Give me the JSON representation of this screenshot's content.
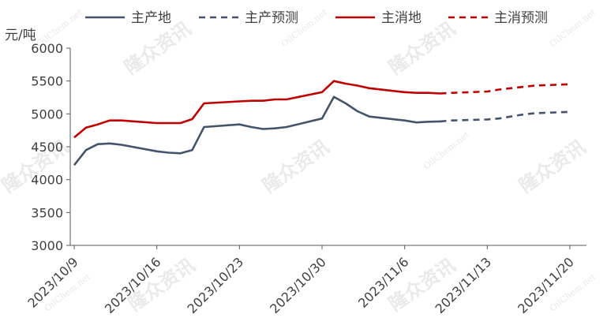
{
  "chart_data": {
    "type": "line",
    "title": "",
    "ylabel": "元/吨",
    "xlabel": "",
    "ylim": [
      3000,
      6000
    ],
    "yticks": [
      3000,
      3500,
      4000,
      4500,
      5000,
      5500,
      6000
    ],
    "xlim": [
      "2023-10-09",
      "2023-11-20"
    ],
    "xticks": [
      "2023/10/9",
      "2023/10/16",
      "2023/10/23",
      "2023/10/30",
      "2023/11/6",
      "2023/11/13",
      "2023/11/20"
    ],
    "legend_position": "top",
    "grid": false,
    "series": [
      {
        "name": "主产地",
        "color": "#44546a",
        "dash": "solid",
        "points": [
          [
            "2023-10-09",
            4220
          ],
          [
            "2023-10-10",
            4450
          ],
          [
            "2023-10-11",
            4540
          ],
          [
            "2023-10-12",
            4550
          ],
          [
            "2023-10-13",
            4530
          ],
          [
            "2023-10-16",
            4430
          ],
          [
            "2023-10-17",
            4410
          ],
          [
            "2023-10-18",
            4400
          ],
          [
            "2023-10-19",
            4450
          ],
          [
            "2023-10-20",
            4800
          ],
          [
            "2023-10-23",
            4840
          ],
          [
            "2023-10-24",
            4800
          ],
          [
            "2023-10-25",
            4770
          ],
          [
            "2023-10-26",
            4780
          ],
          [
            "2023-10-27",
            4800
          ],
          [
            "2023-10-30",
            4930
          ],
          [
            "2023-10-31",
            5260
          ],
          [
            "2023-11-01",
            5160
          ],
          [
            "2023-11-02",
            5040
          ],
          [
            "2023-11-03",
            4960
          ],
          [
            "2023-11-06",
            4900
          ],
          [
            "2023-11-07",
            4870
          ],
          [
            "2023-11-08",
            4880
          ],
          [
            "2023-11-09",
            4885
          ]
        ]
      },
      {
        "name": "主产预测",
        "color": "#44546a",
        "dash": "dashed",
        "points": [
          [
            "2023-11-09",
            4885
          ],
          [
            "2023-11-10",
            4900
          ],
          [
            "2023-11-13",
            4915
          ],
          [
            "2023-11-14",
            4930
          ],
          [
            "2023-11-15",
            4960
          ],
          [
            "2023-11-16",
            4990
          ],
          [
            "2023-11-17",
            5010
          ],
          [
            "2023-11-20",
            5030
          ]
        ]
      },
      {
        "name": "主消地",
        "color": "#c00000",
        "dash": "solid",
        "points": [
          [
            "2023-10-09",
            4640
          ],
          [
            "2023-10-10",
            4790
          ],
          [
            "2023-10-11",
            4840
          ],
          [
            "2023-10-12",
            4900
          ],
          [
            "2023-10-13",
            4900
          ],
          [
            "2023-10-16",
            4860
          ],
          [
            "2023-10-17",
            4860
          ],
          [
            "2023-10-18",
            4860
          ],
          [
            "2023-10-19",
            4920
          ],
          [
            "2023-10-20",
            5160
          ],
          [
            "2023-10-23",
            5190
          ],
          [
            "2023-10-24",
            5200
          ],
          [
            "2023-10-25",
            5200
          ],
          [
            "2023-10-26",
            5220
          ],
          [
            "2023-10-27",
            5220
          ],
          [
            "2023-10-30",
            5330
          ],
          [
            "2023-10-31",
            5500
          ],
          [
            "2023-11-01",
            5460
          ],
          [
            "2023-11-02",
            5430
          ],
          [
            "2023-11-03",
            5390
          ],
          [
            "2023-11-06",
            5330
          ],
          [
            "2023-11-07",
            5320
          ],
          [
            "2023-11-08",
            5320
          ],
          [
            "2023-11-09",
            5310
          ]
        ]
      },
      {
        "name": "主消预测",
        "color": "#c00000",
        "dash": "dashed",
        "points": [
          [
            "2023-11-09",
            5310
          ],
          [
            "2023-11-10",
            5320
          ],
          [
            "2023-11-13",
            5340
          ],
          [
            "2023-11-14",
            5370
          ],
          [
            "2023-11-15",
            5390
          ],
          [
            "2023-11-16",
            5410
          ],
          [
            "2023-11-17",
            5430
          ],
          [
            "2023-11-20",
            5450
          ]
        ]
      }
    ]
  },
  "watermark": {
    "cn": "隆众资讯",
    "en": "OilChem.net"
  }
}
